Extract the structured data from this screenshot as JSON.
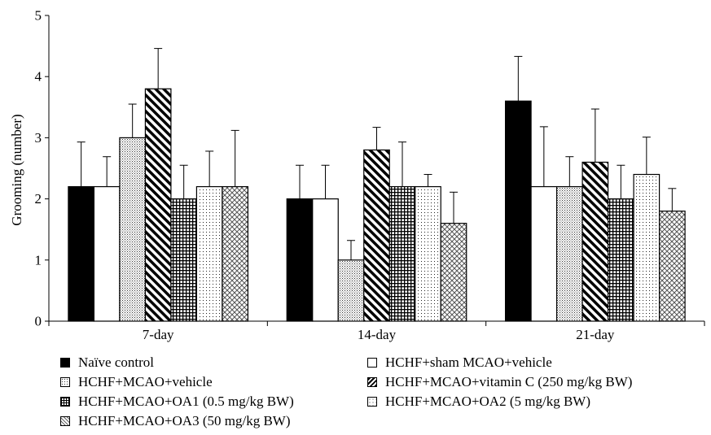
{
  "chart_data": {
    "type": "bar",
    "title": "",
    "xlabel": "",
    "ylabel": "Grooming (number)",
    "ylim": [
      0,
      5
    ],
    "yticks": [
      "0",
      "1",
      "2",
      "3",
      "4",
      "5"
    ],
    "grid": false,
    "legend_position": "bottom",
    "categories": [
      "7-day",
      "14-day",
      "21-day"
    ],
    "series": [
      {
        "name": "Naïve control",
        "pattern": "solid-black",
        "values": [
          2.2,
          2.0,
          3.6
        ],
        "errors": [
          0.73,
          0.55,
          0.73
        ]
      },
      {
        "name": "HCHF+sham MCAO+vehicle",
        "pattern": "white",
        "values": [
          2.2,
          2.0,
          2.2
        ],
        "errors": [
          0.49,
          0.55,
          0.98
        ]
      },
      {
        "name": "HCHF+MCAO+vehicle",
        "pattern": "dense-dots",
        "values": [
          3.0,
          1.0,
          2.2
        ],
        "errors": [
          0.55,
          0.32,
          0.49
        ]
      },
      {
        "name": "HCHF+MCAO+vitamin C (250 mg/kg BW)",
        "pattern": "diagonal-stripes",
        "values": [
          3.8,
          2.8,
          2.6
        ],
        "errors": [
          0.66,
          0.37,
          0.87
        ]
      },
      {
        "name": "HCHF+MCAO+OA1 (0.5 mg/kg BW)",
        "pattern": "grid",
        "values": [
          2.0,
          2.2,
          2.0
        ],
        "errors": [
          0.55,
          0.73,
          0.55
        ]
      },
      {
        "name": "HCHF+MCAO+OA2 (5 mg/kg BW)",
        "pattern": "sparse-dots",
        "values": [
          2.2,
          2.2,
          2.4
        ],
        "errors": [
          0.58,
          0.2,
          0.61
        ]
      },
      {
        "name": "HCHF+MCAO+OA3 (50 mg/kg BW)",
        "pattern": "diamond-hatch",
        "values": [
          2.2,
          1.6,
          1.8
        ],
        "errors": [
          0.92,
          0.51,
          0.37
        ]
      }
    ]
  }
}
